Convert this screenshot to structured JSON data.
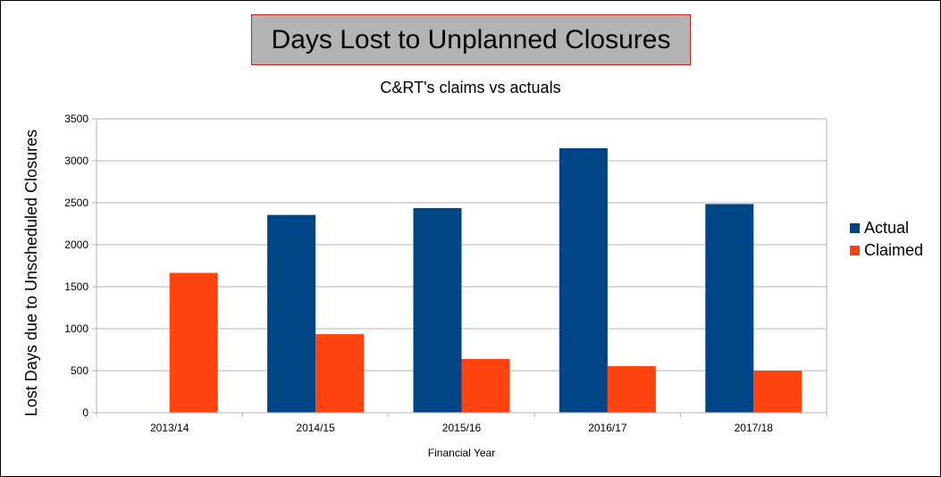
{
  "title": "Days Lost to Unplanned Closures",
  "subtitle": "C&RT's claims vs actuals",
  "chart_data": {
    "type": "bar",
    "title": "Days Lost to Unplanned Closures",
    "subtitle": "C&RT's claims vs actuals",
    "xlabel": "Financial Year",
    "ylabel": "Lost Days due to Unscheduled Closures",
    "categories": [
      "2013/14",
      "2014/15",
      "2015/16",
      "2016/17",
      "2017/18"
    ],
    "series": [
      {
        "name": "Actual",
        "color": "#004586",
        "values": [
          null,
          2355,
          2437,
          3150,
          2485
        ]
      },
      {
        "name": "Claimed",
        "color": "#ff420e",
        "values": [
          1665,
          935,
          640,
          555,
          500
        ]
      }
    ],
    "ylim": [
      0,
      3500
    ],
    "yticks": [
      0,
      500,
      1000,
      1500,
      2000,
      2500,
      3000,
      3500
    ],
    "grid": true,
    "legend_position": "right"
  }
}
